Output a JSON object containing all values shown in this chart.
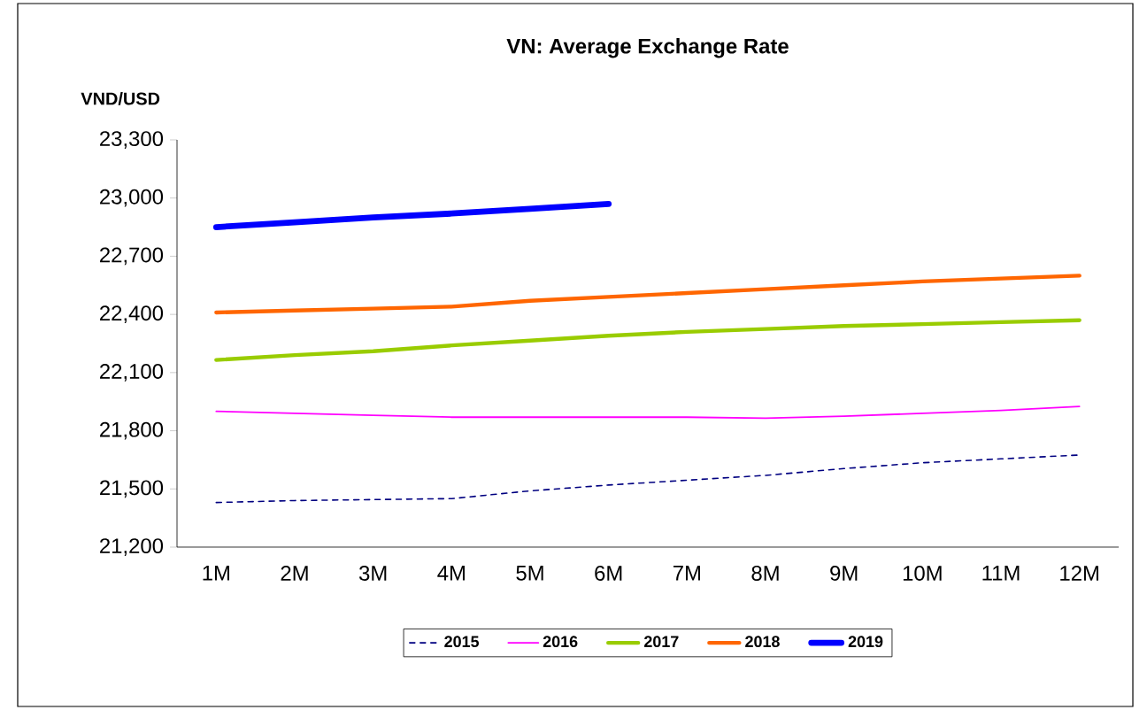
{
  "chart_data": {
    "type": "line",
    "title": "VN: Average Exchange Rate",
    "ylabel": "VND/USD",
    "categories": [
      "1M",
      "2M",
      "3M",
      "4M",
      "5M",
      "6M",
      "7M",
      "8M",
      "9M",
      "10M",
      "11M",
      "12M"
    ],
    "ylim": [
      21200,
      23300
    ],
    "yticks": [
      {
        "value": 21200,
        "label": "21,200"
      },
      {
        "value": 21500,
        "label": "21,500"
      },
      {
        "value": 21800,
        "label": "21,800"
      },
      {
        "value": 22100,
        "label": "22,100"
      },
      {
        "value": 22400,
        "label": "22,400"
      },
      {
        "value": 22700,
        "label": "22,700"
      },
      {
        "value": 23000,
        "label": "23,000"
      },
      {
        "value": 23300,
        "label": "23,300"
      }
    ],
    "series": [
      {
        "name": "2015",
        "color": "#000080",
        "line_style": "dashed",
        "values": [
          21430,
          21440,
          21445,
          21450,
          21490,
          21520,
          21545,
          21570,
          21605,
          21635,
          21655,
          21675
        ]
      },
      {
        "name": "2016",
        "color": "#ff00ff",
        "values": [
          21900,
          21890,
          21880,
          21870,
          21870,
          21870,
          21870,
          21865,
          21875,
          21890,
          21905,
          21925
        ]
      },
      {
        "name": "2017",
        "color": "#99cc00",
        "values": [
          22165,
          22190,
          22210,
          22240,
          22265,
          22290,
          22310,
          22325,
          22340,
          22350,
          22360,
          22370
        ]
      },
      {
        "name": "2018",
        "color": "#ff6600",
        "values": [
          22410,
          22420,
          22430,
          22440,
          22470,
          22490,
          22510,
          22530,
          22550,
          22570,
          22585,
          22600
        ]
      },
      {
        "name": "2019",
        "color": "#0000ff",
        "values": [
          22850,
          22875,
          22900,
          22920,
          22945,
          22970,
          null,
          null,
          null,
          null,
          null,
          null
        ]
      }
    ],
    "legend": "bottom",
    "grid": false,
    "marker": "none",
    "line_style": "solid"
  }
}
